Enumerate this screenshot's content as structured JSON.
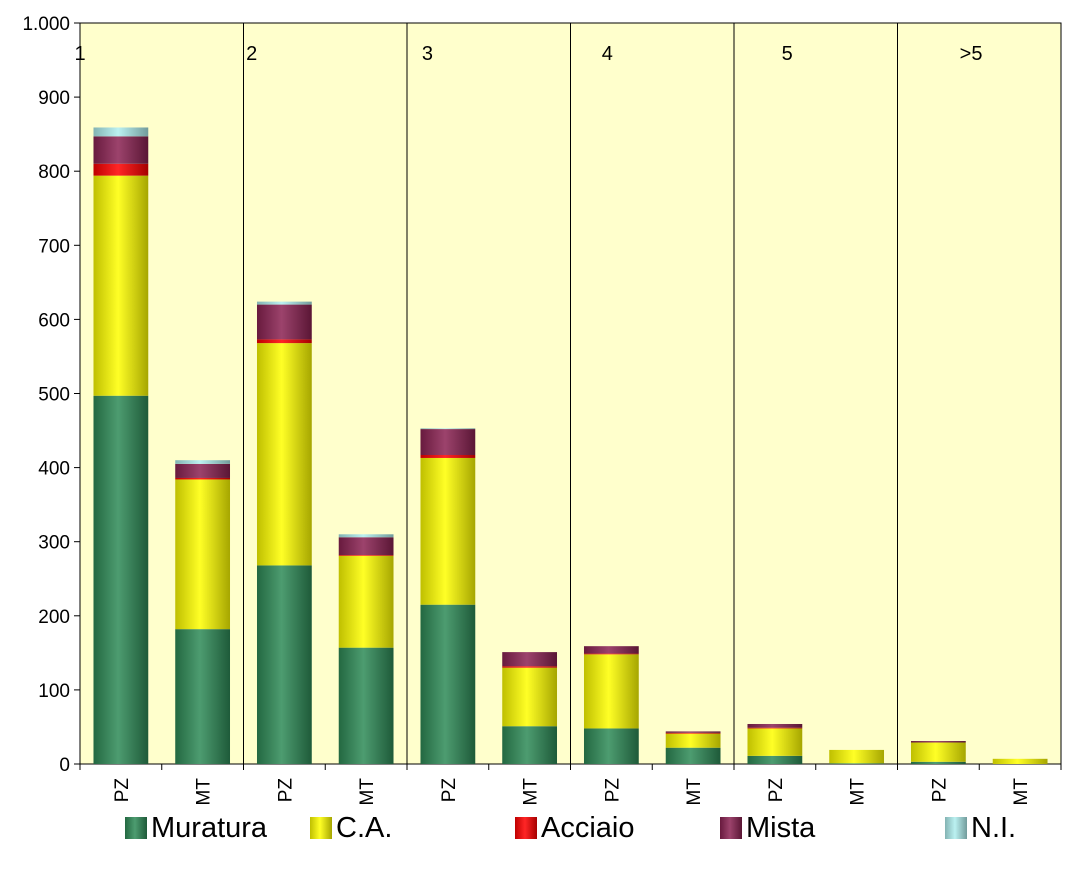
{
  "chart_data": {
    "type": "bar",
    "stacked": true,
    "groups": [
      "1",
      "2",
      "3",
      "4",
      "5",
      ">5"
    ],
    "categories": [
      "PZ",
      "MT",
      "PZ",
      "MT",
      "PZ",
      "MT",
      "PZ",
      "MT",
      "PZ",
      "MT",
      "PZ",
      "MT"
    ],
    "series": [
      {
        "name": "Muratura",
        "color": "#2e8b57",
        "values": [
          497,
          182,
          268,
          157,
          215,
          51,
          48,
          22,
          11,
          1,
          3,
          0
        ]
      },
      {
        "name": "C.A.",
        "color": "#ffff00",
        "values": [
          297,
          202,
          300,
          124,
          198,
          79,
          100,
          19,
          37,
          18,
          26,
          7
        ]
      },
      {
        "name": "Acciaio",
        "color": "#ff0000",
        "values": [
          16,
          2,
          5,
          1,
          4,
          2,
          1,
          1,
          1,
          0,
          0,
          0
        ]
      },
      {
        "name": "Mista",
        "color": "#8b2252",
        "values": [
          37,
          19,
          47,
          24,
          35,
          19,
          10,
          2,
          5,
          0,
          2,
          0
        ]
      },
      {
        "name": "N.I.",
        "color": "#afeeee",
        "values": [
          12,
          5,
          4,
          4,
          1,
          0,
          0,
          0,
          0,
          0,
          0,
          0
        ]
      }
    ],
    "ylim": [
      0,
      1000
    ],
    "yticks": [
      0,
      100,
      200,
      300,
      400,
      500,
      600,
      700,
      800,
      900,
      1000
    ],
    "ytick_labels": [
      "0",
      "100",
      "200",
      "300",
      "400",
      "500",
      "600",
      "700",
      "800",
      "900",
      "1.000"
    ],
    "plot_background": "#ffffcc",
    "grid": false,
    "legend_position": "bottom"
  }
}
